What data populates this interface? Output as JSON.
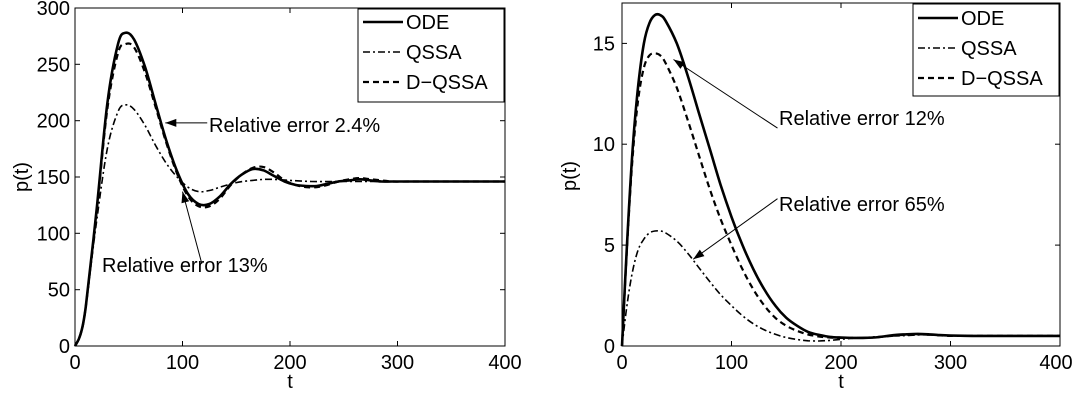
{
  "chart_data": [
    {
      "type": "line",
      "xlabel": "t",
      "ylabel": "p(t)",
      "xlim": [
        0,
        400
      ],
      "ylim": [
        0,
        300
      ],
      "xticks": [
        "0",
        "100",
        "200",
        "300",
        "400"
      ],
      "yticks": [
        "0",
        "50",
        "100",
        "150",
        "200",
        "250",
        "300"
      ],
      "grid": false,
      "legend_position": "top-right",
      "series": [
        {
          "name": "ODE",
          "style": "solid",
          "x": [
            0,
            5,
            10,
            20,
            30,
            40,
            47,
            55,
            65,
            75,
            85,
            95,
            105,
            115,
            125,
            135,
            145,
            155,
            165,
            175,
            185,
            195,
            205,
            215,
            225,
            235,
            245,
            255,
            265,
            275,
            285,
            295,
            310,
            330,
            350,
            375,
            400
          ],
          "y": [
            0,
            10,
            35,
            120,
            215,
            268,
            278,
            272,
            248,
            215,
            182,
            155,
            135,
            126,
            126,
            133,
            144,
            152,
            157,
            156,
            151,
            146,
            143,
            142,
            142,
            144,
            146,
            147,
            148,
            147,
            146,
            146,
            146,
            146,
            146,
            146,
            146
          ]
        },
        {
          "name": "QSSA",
          "style": "dashdot",
          "x": [
            0,
            5,
            10,
            20,
            30,
            40,
            47,
            55,
            65,
            75,
            85,
            95,
            105,
            115,
            125,
            135,
            150,
            165,
            180,
            200,
            220,
            240,
            260,
            280,
            300,
            330,
            360,
            400
          ],
          "y": [
            0,
            10,
            35,
            110,
            175,
            208,
            214,
            210,
            196,
            178,
            162,
            150,
            141,
            137,
            138,
            141,
            145,
            147,
            148,
            147,
            146,
            146,
            146,
            146,
            146,
            146,
            146,
            146
          ]
        },
        {
          "name": "D−QSSA",
          "style": "dashed",
          "x": [
            0,
            5,
            10,
            20,
            30,
            40,
            47,
            55,
            65,
            75,
            85,
            95,
            105,
            115,
            125,
            135,
            145,
            155,
            165,
            175,
            185,
            195,
            205,
            215,
            225,
            235,
            245,
            255,
            265,
            275,
            285,
            295,
            310,
            330,
            350,
            375,
            400
          ],
          "y": [
            0,
            10,
            35,
            118,
            210,
            260,
            268,
            265,
            243,
            212,
            180,
            153,
            133,
            124,
            124,
            131,
            143,
            152,
            158,
            159,
            154,
            147,
            143,
            141,
            141,
            143,
            146,
            148,
            149,
            148,
            147,
            146,
            146,
            146,
            146,
            146,
            146
          ]
        }
      ],
      "annotations": [
        {
          "text": "Relative error 2.4%",
          "target": {
            "x": 84,
            "y": 198
          },
          "anchor": {
            "x": 123,
            "y": 198
          }
        },
        {
          "text": "Relative error 13%",
          "target": {
            "x": 100,
            "y": 137
          },
          "anchor": {
            "x": 118,
            "y": 73
          }
        }
      ]
    },
    {
      "type": "line",
      "xlabel": "t",
      "ylabel": "p(t)",
      "xlim": [
        0,
        400
      ],
      "ylim": [
        0,
        17
      ],
      "xticks": [
        "0",
        "100",
        "200",
        "300",
        "400"
      ],
      "yticks": [
        "0",
        "5",
        "10",
        "15"
      ],
      "ytick_values": [
        0,
        5,
        10,
        15
      ],
      "grid": false,
      "legend_position": "top-right",
      "series": [
        {
          "name": "ODE",
          "style": "solid",
          "x": [
            0,
            5,
            10,
            15,
            20,
            25,
            30,
            35,
            40,
            50,
            60,
            70,
            80,
            90,
            100,
            110,
            120,
            130,
            140,
            150,
            160,
            170,
            180,
            190,
            200,
            210,
            220,
            230,
            240,
            250,
            260,
            270,
            280,
            290,
            300,
            320,
            340,
            360,
            380,
            400
          ],
          "y": [
            0,
            5.5,
            10,
            13,
            15,
            16,
            16.4,
            16.4,
            16.1,
            15,
            13.4,
            11.6,
            9.8,
            8.0,
            6.4,
            5.0,
            3.8,
            2.8,
            2.0,
            1.4,
            1.0,
            0.7,
            0.55,
            0.45,
            0.42,
            0.4,
            0.4,
            0.42,
            0.48,
            0.55,
            0.58,
            0.6,
            0.58,
            0.54,
            0.52,
            0.5,
            0.5,
            0.5,
            0.5,
            0.5
          ]
        },
        {
          "name": "QSSA",
          "style": "dashdot",
          "x": [
            0,
            5,
            10,
            15,
            20,
            25,
            30,
            35,
            40,
            50,
            60,
            70,
            80,
            90,
            100,
            110,
            120,
            130,
            140,
            150,
            160,
            170,
            180,
            190,
            200,
            210,
            220,
            230,
            240,
            250,
            260,
            270,
            280,
            290,
            300,
            320,
            340,
            360,
            380,
            400
          ],
          "y": [
            0,
            2.2,
            3.8,
            4.8,
            5.3,
            5.6,
            5.7,
            5.7,
            5.6,
            5.2,
            4.6,
            3.9,
            3.2,
            2.55,
            2.0,
            1.5,
            1.1,
            0.8,
            0.58,
            0.42,
            0.32,
            0.26,
            0.25,
            0.28,
            0.33,
            0.38,
            0.42,
            0.45,
            0.48,
            0.5,
            0.52,
            0.55,
            0.55,
            0.52,
            0.5,
            0.5,
            0.5,
            0.5,
            0.5,
            0.5
          ]
        },
        {
          "name": "D−QSSA",
          "style": "dashed",
          "x": [
            0,
            5,
            10,
            15,
            20,
            25,
            30,
            35,
            40,
            50,
            60,
            70,
            80,
            90,
            100,
            110,
            120,
            130,
            140,
            150,
            160,
            170,
            180,
            190,
            200,
            210,
            220,
            230,
            240,
            250,
            260,
            270,
            280,
            290,
            300,
            320,
            340,
            360,
            380,
            400
          ],
          "y": [
            0,
            5.3,
            9.6,
            12.3,
            13.8,
            14.4,
            14.5,
            14.4,
            14.0,
            12.8,
            11.2,
            9.5,
            7.8,
            6.3,
            5.0,
            3.8,
            2.8,
            2.0,
            1.4,
            1.0,
            0.75,
            0.57,
            0.47,
            0.42,
            0.4,
            0.4,
            0.4,
            0.42,
            0.47,
            0.52,
            0.56,
            0.58,
            0.56,
            0.53,
            0.5,
            0.5,
            0.5,
            0.5,
            0.5,
            0.5
          ]
        }
      ],
      "annotations": [
        {
          "text": "Relative error 12%",
          "target": {
            "x": 47,
            "y": 14.2
          },
          "anchor": {
            "x": 142,
            "y": 10.8
          }
        },
        {
          "text": "Relative error 65%",
          "target": {
            "x": 65,
            "y": 4.3
          },
          "anchor": {
            "x": 142,
            "y": 7.3
          }
        }
      ]
    }
  ]
}
